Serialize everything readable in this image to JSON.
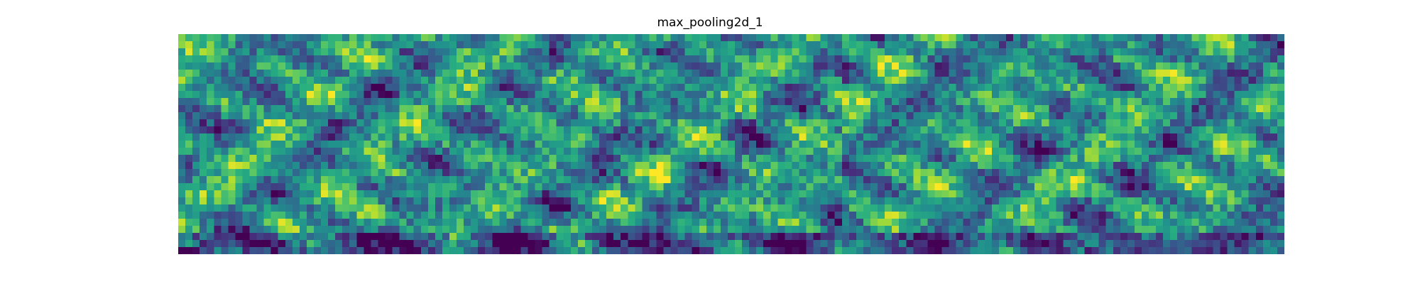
{
  "chart_data": {
    "type": "heatmap",
    "title": "max_pooling2d_1",
    "xlabel": "",
    "ylabel": "",
    "colormap": "viridis",
    "grid": false,
    "axes_visible": false,
    "panels": 5,
    "panel_grid": [
      31,
      31
    ],
    "value_range": [
      0,
      1
    ]
  }
}
